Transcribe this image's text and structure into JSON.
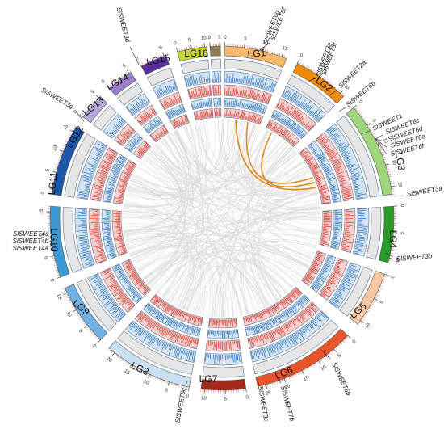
{
  "chromosomes": [
    {
      "label": "LG1",
      "color": "#f5b96b",
      "ticks": [
        "0",
        "5",
        "10",
        "15"
      ]
    },
    {
      "label": "LG2",
      "color": "#f08a0b",
      "ticks": [
        "0",
        "5",
        "10"
      ]
    },
    {
      "label": "LG3",
      "color": "#9ed67e",
      "ticks": [
        "0",
        "5",
        "10",
        "15",
        "20"
      ]
    },
    {
      "label": "LG4",
      "color": "#2a9a2a",
      "ticks": [
        "0",
        "5",
        "10"
      ]
    },
    {
      "label": "LG5",
      "color": "#f7c7a3",
      "ticks": [
        "0",
        "5",
        "10"
      ]
    },
    {
      "label": "LG6",
      "color": "#e8552d",
      "ticks": [
        "0",
        "5",
        "10",
        "15",
        "20",
        "25"
      ]
    },
    {
      "label": "LG7",
      "color": "#a2291b",
      "ticks": [
        "0",
        "5",
        "10"
      ]
    },
    {
      "label": "LG8",
      "color": "#c9dff2",
      "ticks": [
        "0",
        "5",
        "10",
        "15",
        "20"
      ]
    },
    {
      "label": "LG9",
      "color": "#6fb2e3",
      "ticks": [
        "0",
        "5",
        "10",
        "15"
      ]
    },
    {
      "label": "LG10",
      "color": "#3d97d0",
      "ticks": [
        "0",
        "5",
        "10",
        "15"
      ]
    },
    {
      "label": "LG11",
      "color": "#1e56a8",
      "ticks": [
        "0",
        "5",
        "10",
        "15"
      ]
    },
    {
      "label": "LG12",
      "color": "#b7a9d9",
      "ticks": [
        "0",
        "5"
      ]
    },
    {
      "label": "LG13",
      "color": "#9b7fcc",
      "ticks": [
        "0",
        "5"
      ]
    },
    {
      "label": "LG14",
      "color": "#5a2f9c",
      "ticks": [
        "0",
        "5"
      ]
    },
    {
      "label": "LG15",
      "color": "#c7d633",
      "ticks": [
        "0",
        "5",
        "10"
      ]
    },
    {
      "label": "LG16",
      "color": "#8c7a52",
      "ticks": [
        "0",
        "5"
      ]
    }
  ],
  "genes": [
    {
      "name": "SlSWEET6g"
    },
    {
      "name": "SlSWEET6f"
    },
    {
      "name": "SlSWEET3e"
    },
    {
      "name": "SlSWEET3f"
    },
    {
      "name": "SlSWEET2a"
    },
    {
      "name": "SlSWEET6b"
    },
    {
      "name": "SlSWEET1"
    },
    {
      "name": "SlSWEET6c"
    },
    {
      "name": "SlSWEET6d"
    },
    {
      "name": "SlSWEET6e"
    },
    {
      "name": "SlSWEET6h"
    },
    {
      "name": "SlSWEET3a"
    },
    {
      "name": "SlSWEET3b"
    },
    {
      "name": "SlSWEET5b"
    },
    {
      "name": "SlSWEET7b"
    },
    {
      "name": "SlSWEET3c"
    },
    {
      "name": "SlSWEET5c"
    },
    {
      "name": "SlSWEET4c"
    },
    {
      "name": "SlSWEET4b"
    },
    {
      "name": "SlSWEET4a"
    },
    {
      "name": "SlSWEET3g"
    },
    {
      "name": "SlSWEET3d"
    }
  ],
  "colors": {
    "link_grey": "#d9d9d9",
    "link_highlight": "#e08a1e",
    "track_grey": "#e6e6e6",
    "track_blue": "#d3e5f5",
    "track_pink": "#f4d0d0",
    "density_red": "#d23a2a",
    "density_blue": "#2b6fb5"
  }
}
